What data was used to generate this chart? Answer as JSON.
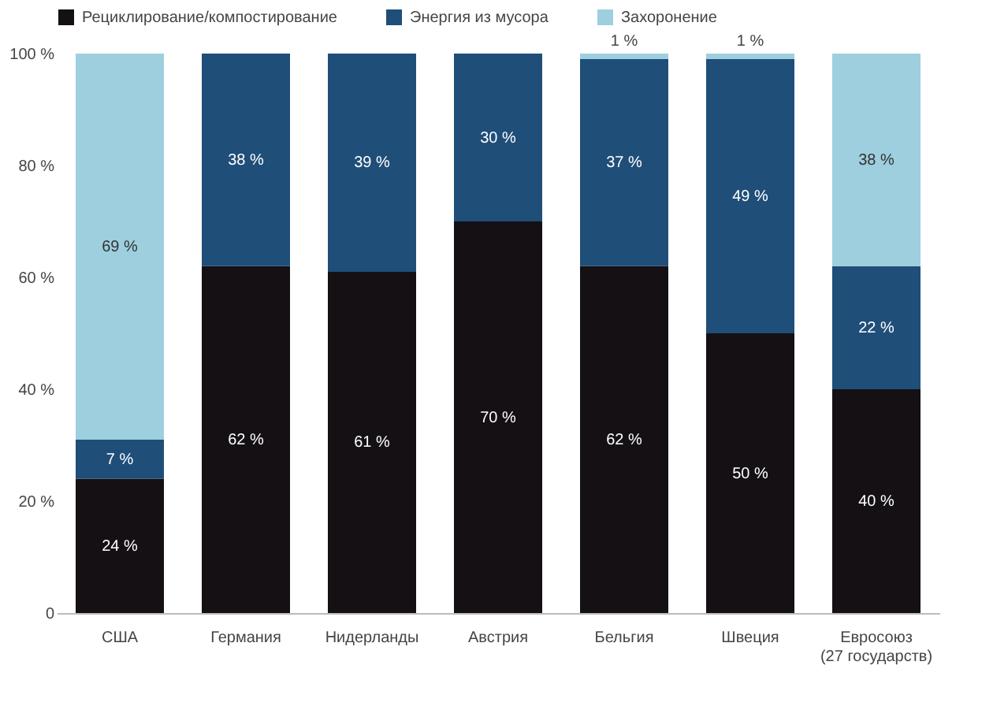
{
  "chart_data": {
    "type": "bar",
    "stacked": true,
    "legend": "top left",
    "grid": false,
    "categories": [
      "США",
      "Германия",
      "Нидерланды",
      "Австрия",
      "Бельгия",
      "Швеция",
      "Евросоюз (27 государств)"
    ],
    "ylim": [
      0,
      100
    ],
    "yticks": [
      {
        "value": 0,
        "label": "0"
      },
      {
        "value": 20,
        "label": "20 %"
      },
      {
        "value": 40,
        "label": "40 %"
      },
      {
        "value": 60,
        "label": "60 %"
      },
      {
        "value": 80,
        "label": "80 %"
      },
      {
        "value": 100,
        "label": "100 %"
      }
    ],
    "series": [
      {
        "name": "Рециклирование/компостирование",
        "color": "#141014",
        "values": [
          24,
          62,
          61,
          70,
          62,
          50,
          40
        ],
        "value_labels": [
          "24 %",
          "62 %",
          "61 %",
          "70 %",
          "62 %",
          "50 %",
          "40 %"
        ]
      },
      {
        "name": "Энергия из мусора",
        "color": "#1f4e79",
        "values": [
          7,
          38,
          39,
          30,
          37,
          49,
          22
        ],
        "value_labels": [
          "7 %",
          "38 %",
          "39 %",
          "30 %",
          "37 %",
          "49 %",
          "22 %"
        ]
      },
      {
        "name": "Захоронение",
        "color": "#9ecfdf",
        "values": [
          69,
          null,
          null,
          null,
          1,
          1,
          38
        ],
        "value_labels": [
          "69 %",
          null,
          null,
          null,
          "1 %",
          "1 %",
          "38 %"
        ]
      }
    ]
  }
}
